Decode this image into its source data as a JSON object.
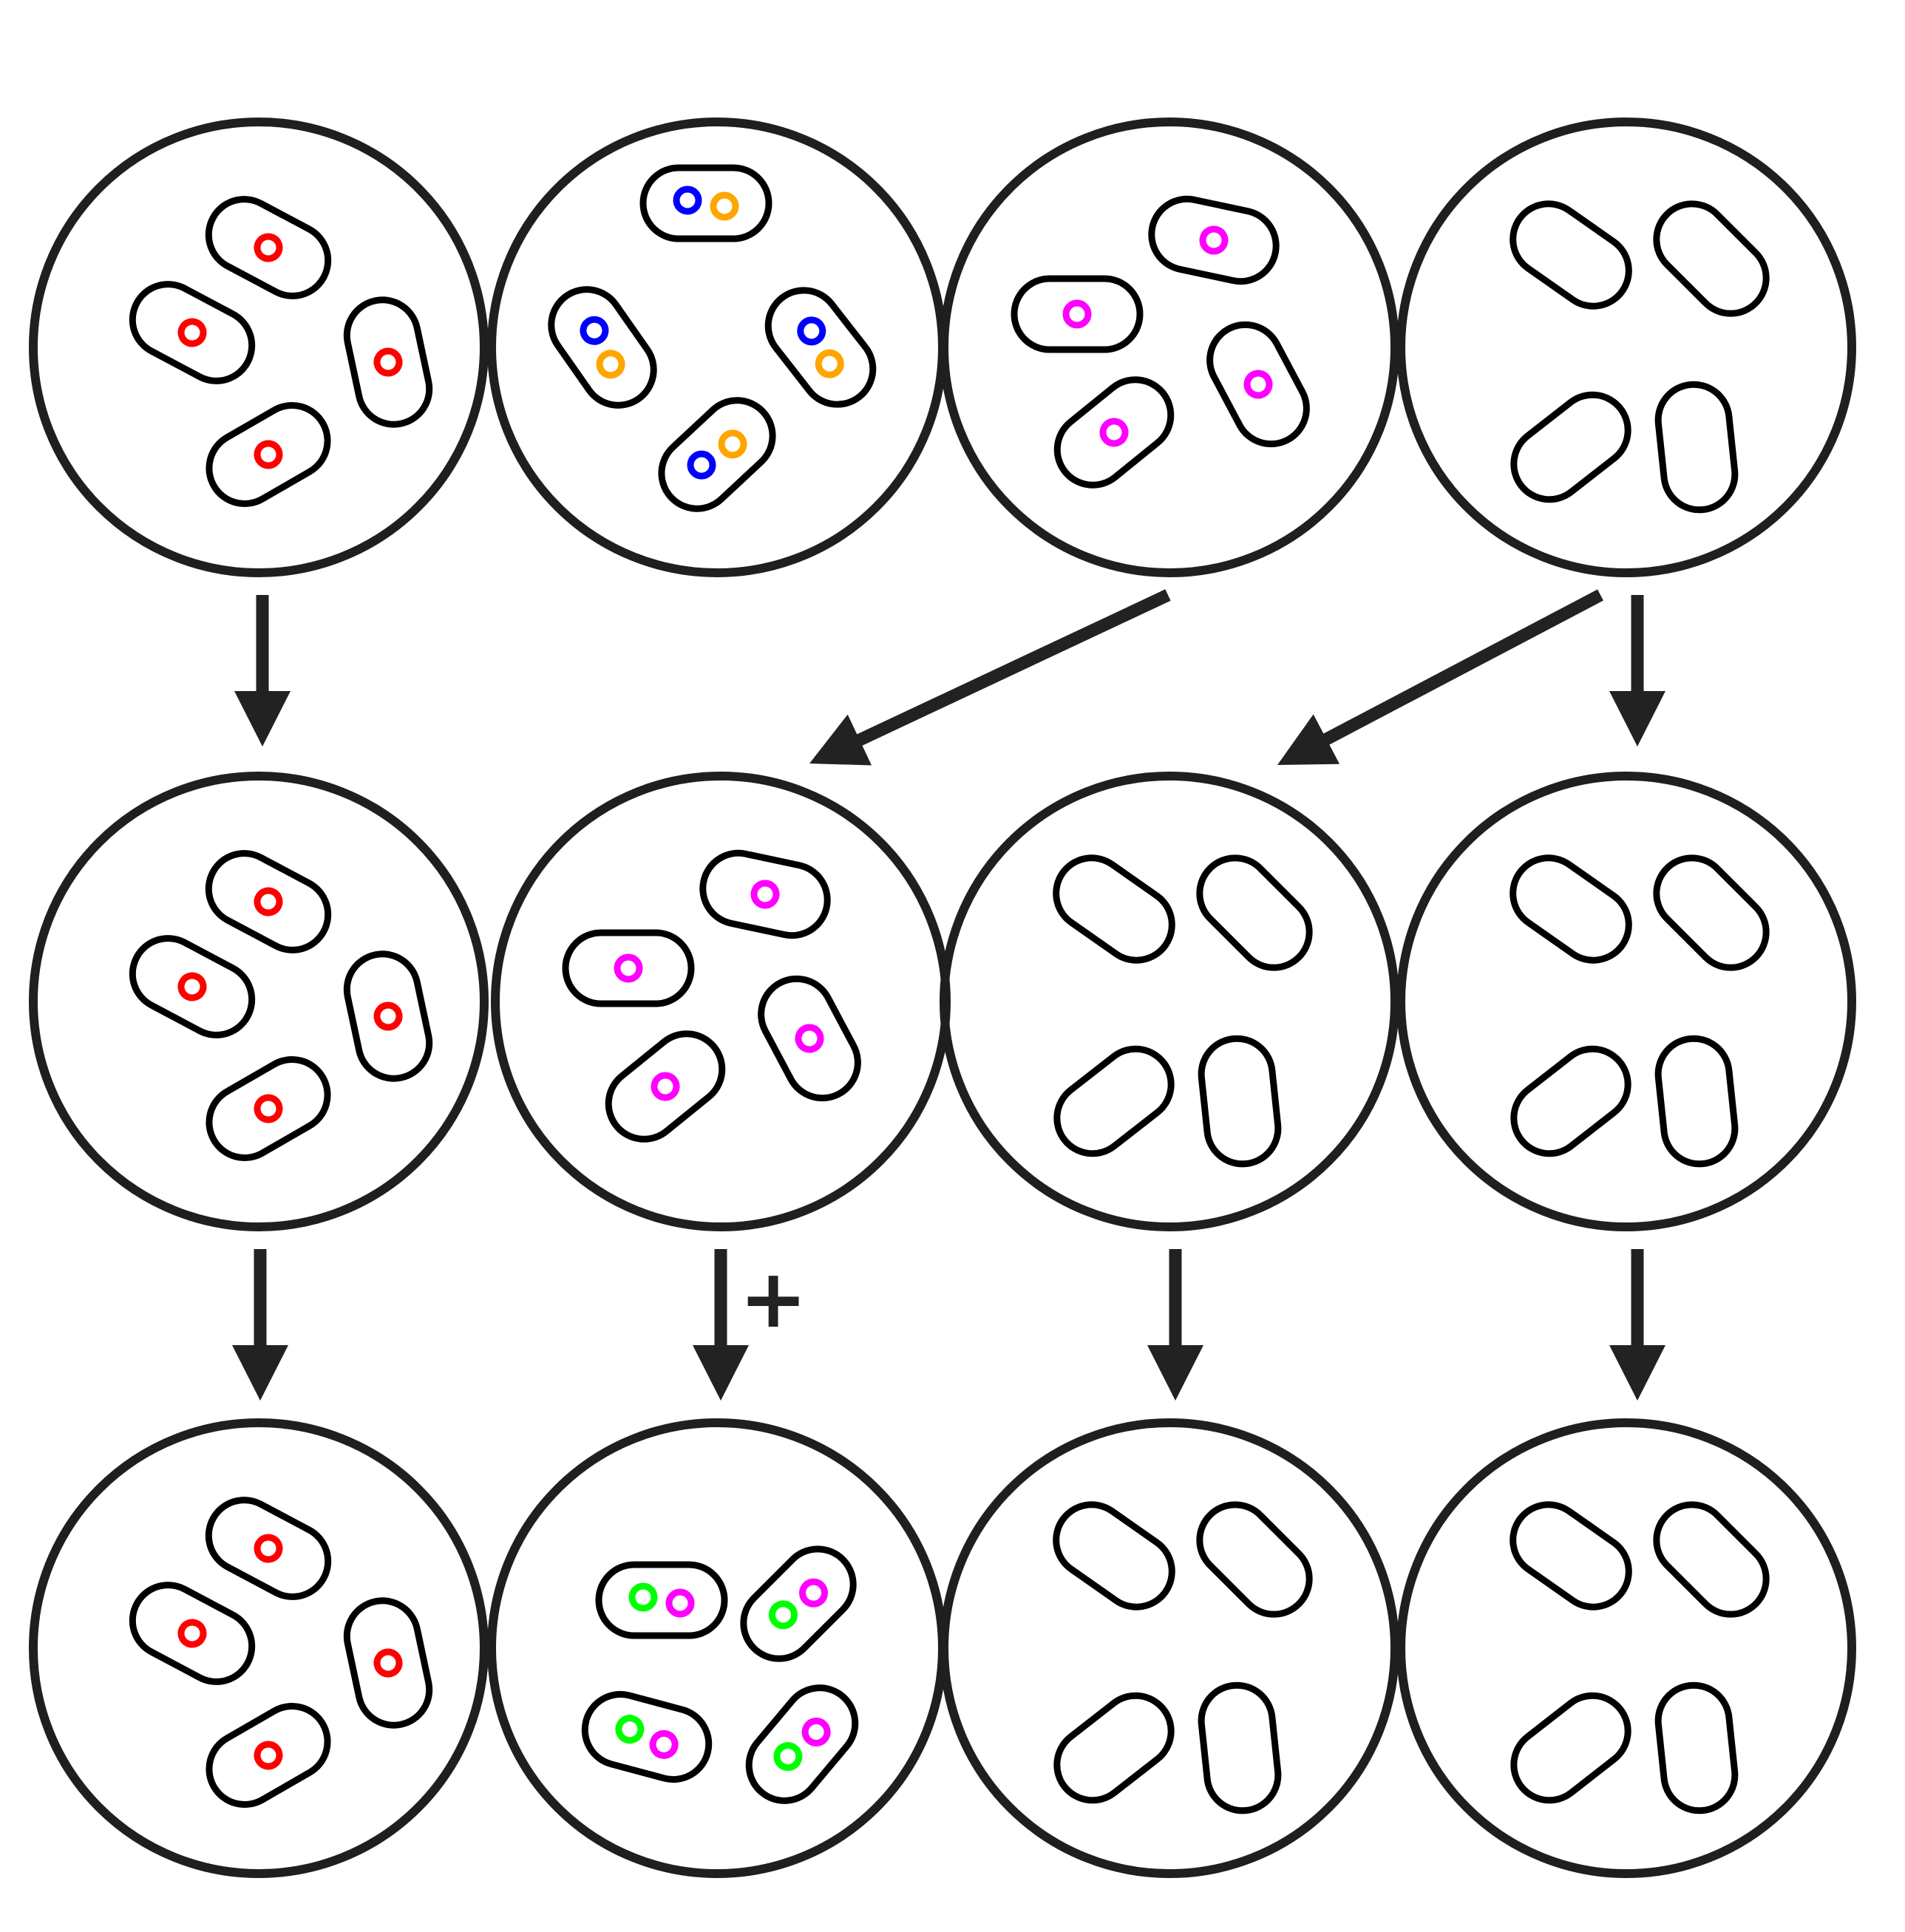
{
  "colors": {
    "outline": "#1f1f1f",
    "cell_outline": "#000000",
    "plasmid_red": "#ff0000",
    "plasmid_blue": "#0000ff",
    "plasmid_orange": "#ffa500",
    "plasmid_magenta": "#ff00ff",
    "plasmid_green": "#00ff00"
  },
  "rows": [
    {
      "dishes": [
        {
          "plasmids": [
            [
              "plasmid_red"
            ],
            [
              "plasmid_red"
            ],
            [
              "plasmid_red"
            ],
            [
              "plasmid_red"
            ]
          ]
        },
        {
          "plasmids": [
            [
              "plasmid_blue",
              "plasmid_orange"
            ],
            [
              "plasmid_blue",
              "plasmid_orange"
            ],
            [
              "plasmid_blue",
              "plasmid_orange"
            ],
            [
              "plasmid_blue",
              "plasmid_orange"
            ]
          ]
        },
        {
          "plasmids": [
            [
              "plasmid_magenta"
            ],
            [
              "plasmid_magenta"
            ],
            [
              "plasmid_magenta"
            ],
            [
              "plasmid_magenta"
            ]
          ]
        },
        {
          "plasmids": [
            [],
            [],
            [],
            []
          ]
        }
      ]
    },
    {
      "dishes": [
        {
          "plasmids": [
            [
              "plasmid_red"
            ],
            [
              "plasmid_red"
            ],
            [
              "plasmid_red"
            ],
            [
              "plasmid_red"
            ]
          ]
        },
        {
          "plasmids": [
            [
              "plasmid_magenta"
            ],
            [
              "plasmid_magenta"
            ],
            [
              "plasmid_magenta"
            ],
            [
              "plasmid_magenta"
            ]
          ]
        },
        {
          "plasmids": [
            [],
            [],
            [],
            []
          ]
        },
        {
          "plasmids": [
            [],
            [],
            [],
            []
          ]
        }
      ]
    },
    {
      "dishes": [
        {
          "plasmids": [
            [
              "plasmid_red"
            ],
            [
              "plasmid_red"
            ],
            [
              "plasmid_red"
            ],
            [
              "plasmid_red"
            ]
          ]
        },
        {
          "plasmids": [
            [
              "plasmid_green",
              "plasmid_magenta"
            ],
            [
              "plasmid_green",
              "plasmid_magenta"
            ],
            [
              "plasmid_green",
              "plasmid_magenta"
            ],
            [
              "plasmid_green",
              "plasmid_magenta"
            ]
          ]
        },
        {
          "plasmids": [
            [],
            [],
            [],
            []
          ]
        },
        {
          "plasmids": [
            [],
            [],
            [],
            []
          ]
        }
      ]
    }
  ],
  "transfers": [
    {
      "from": "row1-dish1",
      "to": "row2-dish1"
    },
    {
      "from": "row1-dish3",
      "to": "row2-dish2"
    },
    {
      "from": "row1-dish4",
      "to": "row2-dish3"
    },
    {
      "from": "row1-dish4",
      "to": "row2-dish4"
    },
    {
      "from": "row2-dish1",
      "to": "row3-dish1"
    },
    {
      "from": "row2-dish2",
      "to": "row3-dish2",
      "label": "+"
    },
    {
      "from": "row2-dish3",
      "to": "row3-dish3"
    },
    {
      "from": "row2-dish4",
      "to": "row3-dish4"
    }
  ]
}
